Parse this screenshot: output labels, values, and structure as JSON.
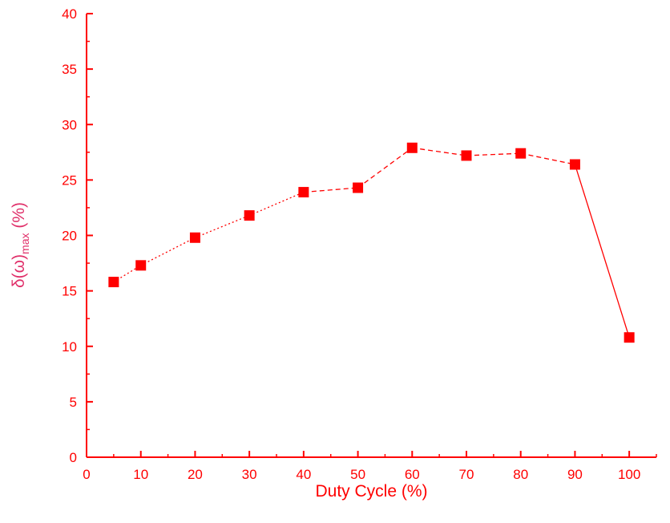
{
  "colors": {
    "axis": "#ff0000",
    "marker": "#ff0000",
    "line": "#ff0000",
    "ylabel": "#e0306a"
  },
  "chart_data": {
    "type": "line",
    "title": "",
    "xlabel": "Duty Cycle (%)",
    "ylabel": {
      "main": "δ(ω)",
      "sub": "max",
      "unit": " (%)"
    },
    "xlim": [
      0,
      105
    ],
    "ylim": [
      0,
      40
    ],
    "xticks": [
      0,
      10,
      20,
      30,
      40,
      50,
      60,
      70,
      80,
      90,
      100
    ],
    "xtick_labels": [
      "0",
      "10",
      "20",
      "30",
      "40",
      "50",
      "60",
      "70",
      "80",
      "90",
      "100"
    ],
    "yticks": [
      0,
      5,
      10,
      15,
      20,
      25,
      30,
      35,
      40
    ],
    "ytick_labels": [
      "0",
      "5",
      "10",
      "15",
      "20",
      "25",
      "30",
      "35",
      "40"
    ],
    "grid": false,
    "series": [
      {
        "marker": "square",
        "x": [
          5,
          10,
          20,
          30,
          40,
          50,
          60,
          70,
          80,
          90,
          100
        ],
        "y": [
          15.8,
          17.3,
          19.8,
          21.8,
          23.9,
          24.3,
          27.9,
          27.2,
          27.4,
          26.4,
          10.8
        ],
        "segment_styles": [
          "dotted",
          "dotted",
          "dotted",
          "dotted",
          "dashed",
          "dashed",
          "dashed",
          "dashed",
          "dashed",
          "solid"
        ]
      }
    ]
  }
}
